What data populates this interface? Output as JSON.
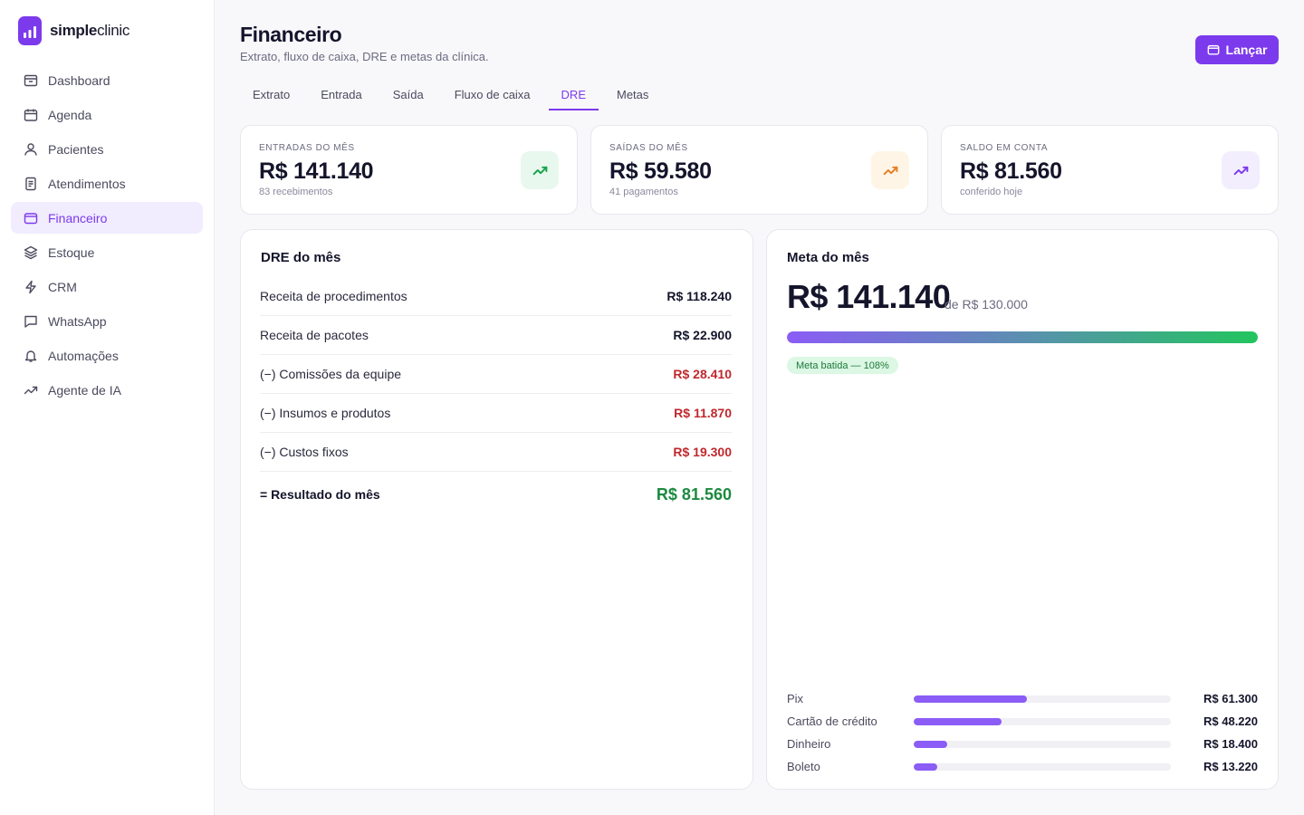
{
  "brand": {
    "bold": "simple",
    "light": "clinic"
  },
  "nav": [
    {
      "label": "Dashboard",
      "icon": "archive-icon",
      "active": false
    },
    {
      "label": "Agenda",
      "icon": "calendar-icon",
      "active": false
    },
    {
      "label": "Pacientes",
      "icon": "user-icon",
      "active": false
    },
    {
      "label": "Atendimentos",
      "icon": "clipboard-icon",
      "active": false
    },
    {
      "label": "Financeiro",
      "icon": "wallet-icon",
      "active": true
    },
    {
      "label": "Estoque",
      "icon": "layers-icon",
      "active": false
    },
    {
      "label": "CRM",
      "icon": "bolt-icon",
      "active": false
    },
    {
      "label": "WhatsApp",
      "icon": "chat-icon",
      "active": false
    },
    {
      "label": "Automações",
      "icon": "bell-icon",
      "active": false
    },
    {
      "label": "Agente de IA",
      "icon": "trend-icon",
      "active": false
    }
  ],
  "header": {
    "title": "Financeiro",
    "subtitle": "Extrato, fluxo de caixa, DRE e metas da clínica.",
    "action_label": "Lançar"
  },
  "tabs": [
    {
      "label": "Extrato",
      "active": false
    },
    {
      "label": "Entrada",
      "active": false
    },
    {
      "label": "Saída",
      "active": false
    },
    {
      "label": "Fluxo de caixa",
      "active": false
    },
    {
      "label": "DRE",
      "active": true
    },
    {
      "label": "Metas",
      "active": false
    }
  ],
  "stats": [
    {
      "label": "ENTRADAS DO MÊS",
      "value": "R$ 141.140",
      "sub": "83 recebimentos",
      "icon": "trending-up-icon",
      "color": "#16a34a",
      "bg": "#e8f8ee"
    },
    {
      "label": "SAÍDAS DO MÊS",
      "value": "R$ 59.580",
      "sub": "41 pagamentos",
      "icon": "trending-up-icon",
      "color": "#e67e22",
      "bg": "#fff5e6"
    },
    {
      "label": "SALDO EM CONTA",
      "value": "R$ 81.560",
      "sub": "conferido hoje",
      "icon": "trending-up-icon",
      "color": "#7c3aed",
      "bg": "#f3eefe"
    }
  ],
  "dre": {
    "title": "DRE do mês",
    "rows": [
      {
        "label": "Receita de procedimentos",
        "amount": "R$ 118.240",
        "negative": false
      },
      {
        "label": "Receita de pacotes",
        "amount": "R$ 22.900",
        "negative": false
      },
      {
        "label": "(−) Comissões da equipe",
        "amount": "R$ 28.410",
        "negative": true
      },
      {
        "label": "(−) Insumos e produtos",
        "amount": "R$ 11.870",
        "negative": true
      },
      {
        "label": "(−) Custos fixos",
        "amount": "R$ 19.300",
        "negative": true
      }
    ],
    "total": {
      "label": "= Resultado do mês",
      "amount": "R$ 81.560"
    }
  },
  "meta": {
    "title": "Meta do mês",
    "value": "R$ 141.140",
    "of": "de R$ 130.000",
    "progress": 1.0,
    "badge": "Meta batida — 108%",
    "payments": [
      {
        "name": "Pix",
        "amount": "R$ 61.300",
        "share": 0.44
      },
      {
        "name": "Cartão de crédito",
        "amount": "R$ 48.220",
        "share": 0.34
      },
      {
        "name": "Dinheiro",
        "amount": "R$ 18.400",
        "share": 0.13
      },
      {
        "name": "Boleto",
        "amount": "R$ 13.220",
        "share": 0.09
      }
    ]
  }
}
